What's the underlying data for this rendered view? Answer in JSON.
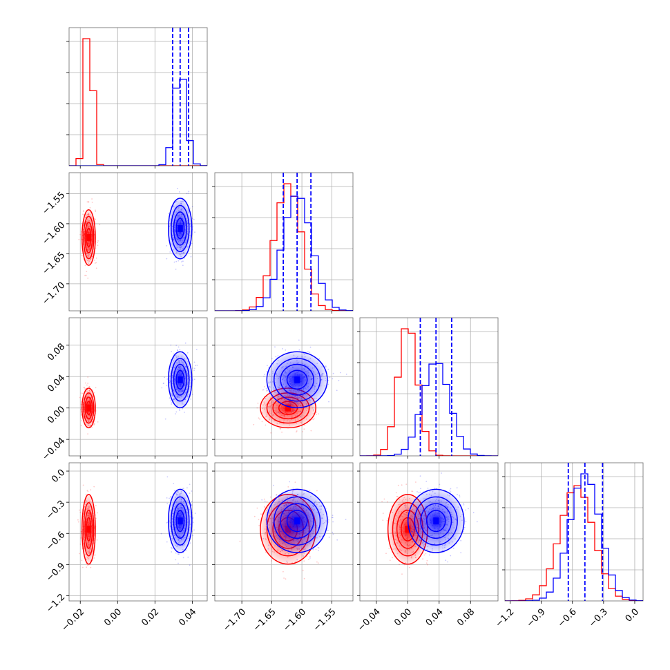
{
  "chart_data": {
    "type": "corner",
    "colors": {
      "red": "#ff0000",
      "blue": "#0000ff",
      "grid": "#b0b0b0",
      "axis": "#000000"
    },
    "grid": true,
    "parameters": [
      {
        "range": [
          -0.026,
          0.048
        ],
        "ticks": [
          -0.02,
          0.0,
          0.02,
          0.04
        ],
        "tick_labels": [
          "−0.02",
          "0.00",
          "0.02",
          "0.04"
        ]
      },
      {
        "range": [
          -1.745,
          -1.515
        ],
        "ticks": [
          -1.7,
          -1.65,
          -1.6,
          -1.55
        ],
        "tick_labels": [
          "−1.70",
          "−1.65",
          "−1.60",
          "−1.55"
        ]
      },
      {
        "range": [
          -0.061,
          0.115
        ],
        "ticks": [
          -0.04,
          0.0,
          0.04,
          0.08
        ],
        "tick_labels": [
          "−0.04",
          "0.00",
          "0.04",
          "0.08"
        ]
      },
      {
        "range": [
          -1.25,
          0.08
        ],
        "ticks": [
          -1.2,
          -0.9,
          -0.6,
          -0.3,
          0.0
        ],
        "tick_labels": [
          "−1.2",
          "−0.9",
          "−0.6",
          "−0.3",
          "0.0"
        ]
      }
    ],
    "series": [
      {
        "color": "red",
        "mean": [
          -0.0155,
          -1.623,
          0.0,
          -0.56
        ],
        "std": [
          0.0017,
          0.022,
          0.012,
          0.16
        ]
      },
      {
        "color": "blue",
        "mean": [
          0.0335,
          -1.608,
          0.036,
          -0.48
        ],
        "std": [
          0.003,
          0.024,
          0.017,
          0.145
        ]
      }
    ],
    "quantile_lines": [
      {
        "param": 0,
        "values": [
          0.0295,
          0.0335,
          0.038
        ]
      },
      {
        "param": 1,
        "values": [
          -1.631,
          -1.608,
          -1.585
        ]
      },
      {
        "param": 2,
        "values": [
          0.016,
          0.036,
          0.056
        ]
      },
      {
        "param": 3,
        "values": [
          -0.64,
          -0.48,
          -0.31
        ]
      }
    ]
  }
}
